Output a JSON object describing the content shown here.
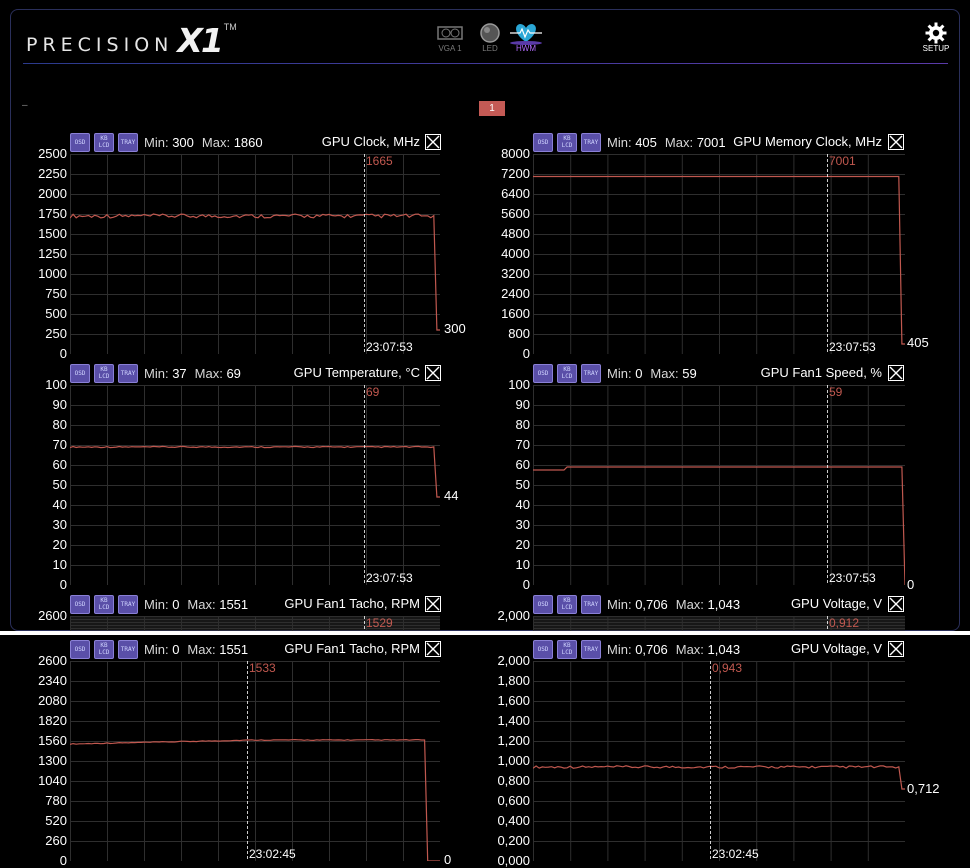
{
  "header": {
    "logo_word": "PRECISION",
    "logo_x1": "X1",
    "logo_tm": "TM",
    "nav": [
      {
        "label": "VGA 1",
        "icon": "gpu-card-icon",
        "active": false
      },
      {
        "label": "LED",
        "icon": "led-bulb-icon",
        "active": false
      },
      {
        "label": "HWM",
        "icon": "heart-monitor-icon",
        "active": true
      }
    ],
    "setup_label": "SETUP"
  },
  "toolbar": {
    "dash": "–",
    "page_button": "1"
  },
  "badges": {
    "osd": "OSD",
    "kb": "KB LCD",
    "tray": "TRAY"
  },
  "graphs": [
    {
      "title": "GPU Clock, MHz",
      "min_label": "Min:",
      "min": "300",
      "max_label": "Max:",
      "max": "1860",
      "ticks": [
        "2500",
        "2250",
        "2000",
        "1750",
        "1500",
        "1250",
        "1000",
        "750",
        "500",
        "250",
        "0"
      ],
      "cursor_value": "1665",
      "cursor_time": "23:07:53",
      "end_value": "300"
    },
    {
      "title": "GPU Memory Clock, MHz",
      "min_label": "Min:",
      "min": "405",
      "max_label": "Max:",
      "max": "7001",
      "ticks": [
        "8000",
        "7200",
        "6400",
        "5600",
        "4800",
        "4000",
        "3200",
        "2400",
        "1600",
        "800",
        "0"
      ],
      "cursor_value": "7001",
      "cursor_time": "23:07:53",
      "end_value": "405"
    },
    {
      "title": "GPU Temperature, °C",
      "min_label": "Min:",
      "min": "37",
      "max_label": "Max:",
      "max": "69",
      "ticks": [
        "100",
        "90",
        "80",
        "70",
        "60",
        "50",
        "40",
        "30",
        "20",
        "10",
        "0"
      ],
      "cursor_value": "69",
      "cursor_time": "23:07:53",
      "end_value": "44"
    },
    {
      "title": "GPU Fan1 Speed, %",
      "min_label": "Min:",
      "min": "0",
      "max_label": "Max:",
      "max": "59",
      "ticks": [
        "100",
        "90",
        "80",
        "70",
        "60",
        "50",
        "40",
        "30",
        "20",
        "10",
        "0"
      ],
      "cursor_value": "59",
      "cursor_time": "23:07:53",
      "end_value": "0"
    },
    {
      "title": "GPU Fan1 Tacho, RPM",
      "min_label": "Min:",
      "min": "0",
      "max_label": "Max:",
      "max": "1551",
      "ticks": [
        "2600"
      ],
      "cursor_value": "1529"
    },
    {
      "title": "GPU Voltage, V",
      "min_label": "Min:",
      "min": "0,706",
      "max_label": "Max:",
      "max": "1,043",
      "ticks": [
        "2,000"
      ],
      "cursor_value": "0,912"
    },
    {
      "title": "GPU Fan1 Tacho, RPM",
      "min_label": "Min:",
      "min": "0",
      "max_label": "Max:",
      "max": "1551",
      "ticks": [
        "2600",
        "2340",
        "2080",
        "1820",
        "1560",
        "1300",
        "1040",
        "780",
        "520",
        "260",
        "0"
      ],
      "cursor_value": "1533",
      "cursor_time": "23:02:45",
      "end_value": "0"
    },
    {
      "title": "GPU Voltage, V",
      "min_label": "Min:",
      "min": "0,706",
      "max_label": "Max:",
      "max": "1,043",
      "ticks": [
        "2,000",
        "1,800",
        "1,600",
        "1,400",
        "1,200",
        "1,000",
        "0,800",
        "0,600",
        "0,400",
        "0,200",
        "0,000"
      ],
      "cursor_value": "0,943",
      "cursor_time": "23:02:45",
      "end_value": "0,712"
    }
  ],
  "colors": {
    "trace": "#c0584f",
    "grid": "#2e2e2e",
    "accent": "#b36cff",
    "badge": "#5a4fa8"
  }
}
